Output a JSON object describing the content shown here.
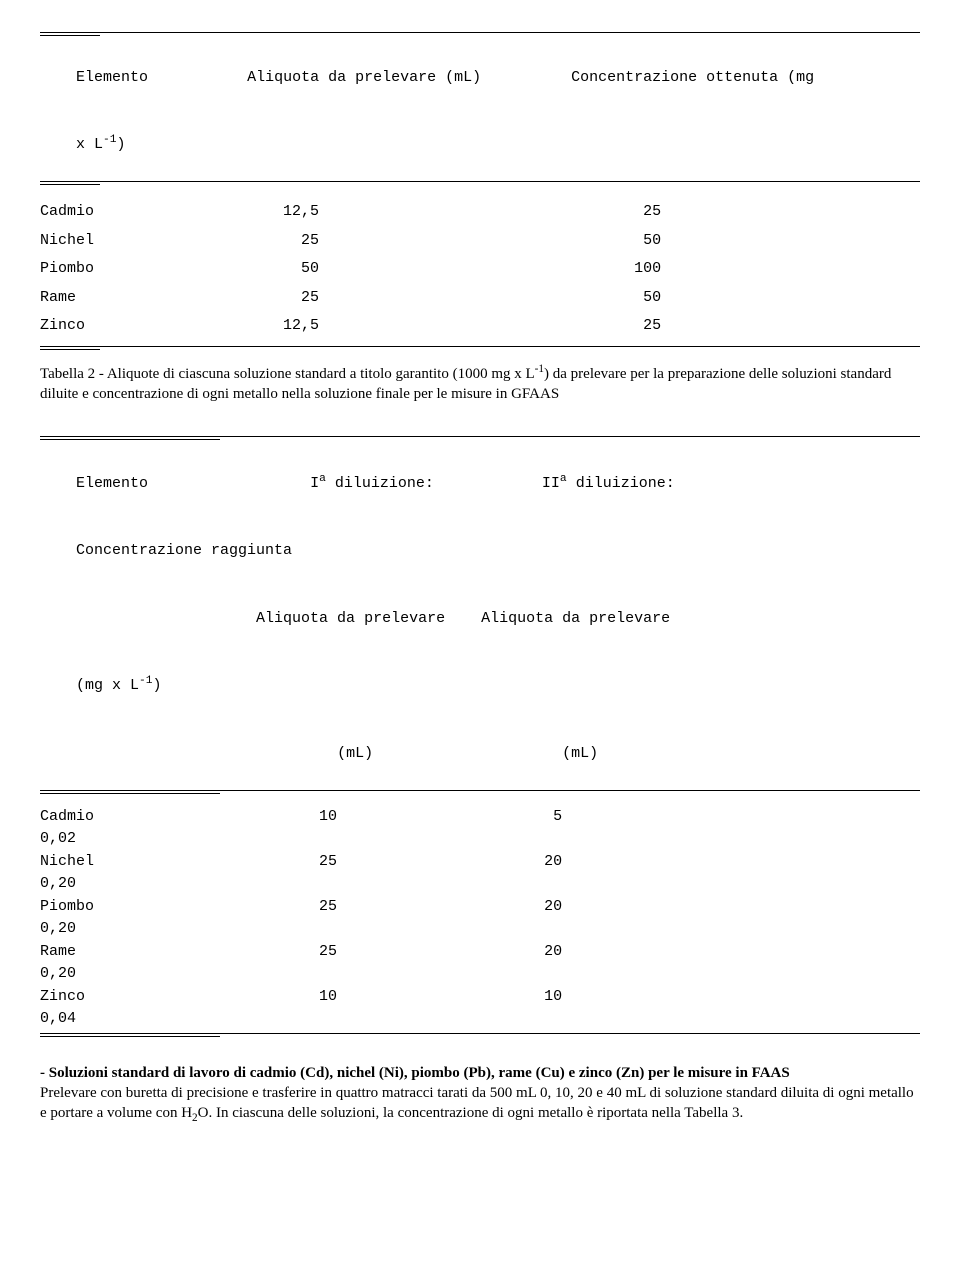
{
  "table1": {
    "headers": {
      "col1": "Elemento",
      "col2": "Aliquota da prelevare (mL)",
      "col3": "Concentrazione ottenuta (mg",
      "sub": "x L",
      "sub_sup": "-1",
      "sub_close": ")"
    },
    "rows": [
      {
        "el": "Cadmio",
        "aliq": "12,5",
        "conc": "25"
      },
      {
        "el": "Nichel",
        "aliq": "25",
        "conc": "50"
      },
      {
        "el": "Piombo",
        "aliq": "50",
        "conc": "100"
      },
      {
        "el": "Rame",
        "aliq": "25",
        "conc": "50"
      },
      {
        "el": "Zinco",
        "aliq": "12,5",
        "conc": "25"
      }
    ]
  },
  "caption1": {
    "pre": "Tabella 2 - Aliquote di ciascuna soluzione standard a titolo garantito (1000 mg x L",
    "sup": "-1",
    "post": ") da prelevare per la preparazione delle soluzioni standard diluite e concentrazione di ogni metallo nella soluzione finale per le misure in GFAAS"
  },
  "table2": {
    "headers": {
      "h1_col1": "Elemento",
      "h1_col2_pre": "I",
      "h1_col2_sup": "a",
      "h1_col2_post": " diluizione:",
      "h1_col3_pre": "II",
      "h1_col3_sup": "a",
      "h1_col3_post": " diluizione:",
      "h2": "Concentrazione raggiunta",
      "h3_col2": "Aliquota da prelevare",
      "h3_col3": "Aliquota da prelevare",
      "h4_pre": "(mg x L",
      "h4_sup": "-1",
      "h4_post": ")",
      "h5_col2": "(mL)",
      "h5_col3": "(mL)"
    },
    "rows": [
      {
        "el": "Cadmio",
        "d1": "10",
        "d2": "5",
        "conc": "0,02"
      },
      {
        "el": "Nichel",
        "d1": "25",
        "d2": "20",
        "conc": "0,20"
      },
      {
        "el": "Piombo",
        "d1": "25",
        "d2": "20",
        "conc": "0,20"
      },
      {
        "el": "Rame",
        "d1": "25",
        "d2": "20",
        "conc": "0,20"
      },
      {
        "el": "Zinco",
        "d1": "10",
        "d2": "10",
        "conc": "0,04"
      }
    ]
  },
  "body": {
    "title": "- Soluzioni standard di lavoro di cadmio (Cd), nichel (Ni), piombo (Pb), rame (Cu) e zinco (Zn) per le misure in FAAS",
    "p1_pre": "Prelevare con buretta di precisione e trasferire in quattro matracci tarati da 500 mL 0, 10, 20 e 40 mL di soluzione standard diluita di ogni metallo e portare a volume con H",
    "p1_sub": "2",
    "p1_mid": "O. In ciascuna delle soluzioni, la concentrazione di ogni metallo è riportata nella Tabella 3."
  }
}
